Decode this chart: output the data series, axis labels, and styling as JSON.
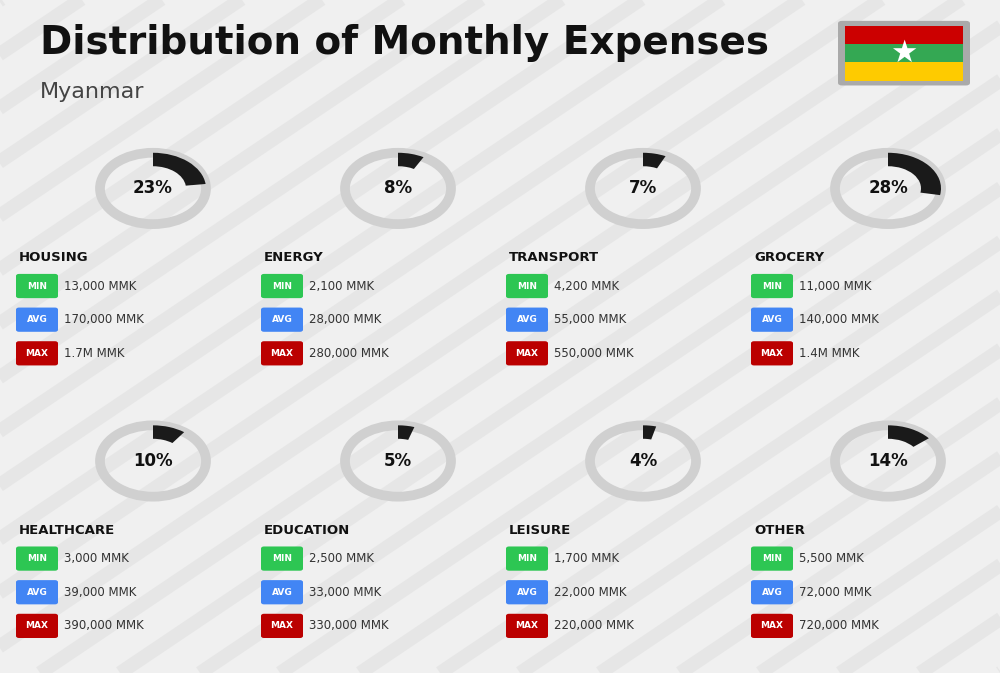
{
  "title": "Distribution of Monthly Expenses",
  "subtitle": "Myanmar",
  "background_color": "#f0f0f0",
  "categories": [
    {
      "name": "HOUSING",
      "percent": 23,
      "min": "13,000 MMK",
      "avg": "170,000 MMK",
      "max": "1.7M MMK",
      "col": 0,
      "row": 0
    },
    {
      "name": "ENERGY",
      "percent": 8,
      "min": "2,100 MMK",
      "avg": "28,000 MMK",
      "max": "280,000 MMK",
      "col": 1,
      "row": 0
    },
    {
      "name": "TRANSPORT",
      "percent": 7,
      "min": "4,200 MMK",
      "avg": "55,000 MMK",
      "max": "550,000 MMK",
      "col": 2,
      "row": 0
    },
    {
      "name": "GROCERY",
      "percent": 28,
      "min": "11,000 MMK",
      "avg": "140,000 MMK",
      "max": "1.4M MMK",
      "col": 3,
      "row": 0
    },
    {
      "name": "HEALTHCARE",
      "percent": 10,
      "min": "3,000 MMK",
      "avg": "39,000 MMK",
      "max": "390,000 MMK",
      "col": 0,
      "row": 1
    },
    {
      "name": "EDUCATION",
      "percent": 5,
      "min": "2,500 MMK",
      "avg": "33,000 MMK",
      "max": "330,000 MMK",
      "col": 1,
      "row": 1
    },
    {
      "name": "LEISURE",
      "percent": 4,
      "min": "1,700 MMK",
      "avg": "22,000 MMK",
      "max": "220,000 MMK",
      "col": 2,
      "row": 1
    },
    {
      "name": "OTHER",
      "percent": 14,
      "min": "5,500 MMK",
      "avg": "72,000 MMK",
      "max": "720,000 MMK",
      "col": 3,
      "row": 1
    }
  ],
  "min_color": "#2dc653",
  "avg_color": "#4285f4",
  "max_color": "#bb0000",
  "label_text_color": "#ffffff",
  "value_text_color": "#333333",
  "category_name_color": "#111111",
  "percent_color": "#111111",
  "circle_bg_color": "#d0d0d0",
  "circle_fill_color": "#1a1a1a",
  "flag_colors": [
    "#fecb00",
    "#34a853",
    "#cc0000"
  ],
  "flag_star_color": "#ffffff",
  "diagonal_color": "#bbbbbb",
  "title_fontsize": 28,
  "subtitle_fontsize": 16,
  "cat_name_fontsize": 9.5,
  "pct_fontsize": 12,
  "badge_fontsize": 6.5,
  "value_fontsize": 8.5
}
